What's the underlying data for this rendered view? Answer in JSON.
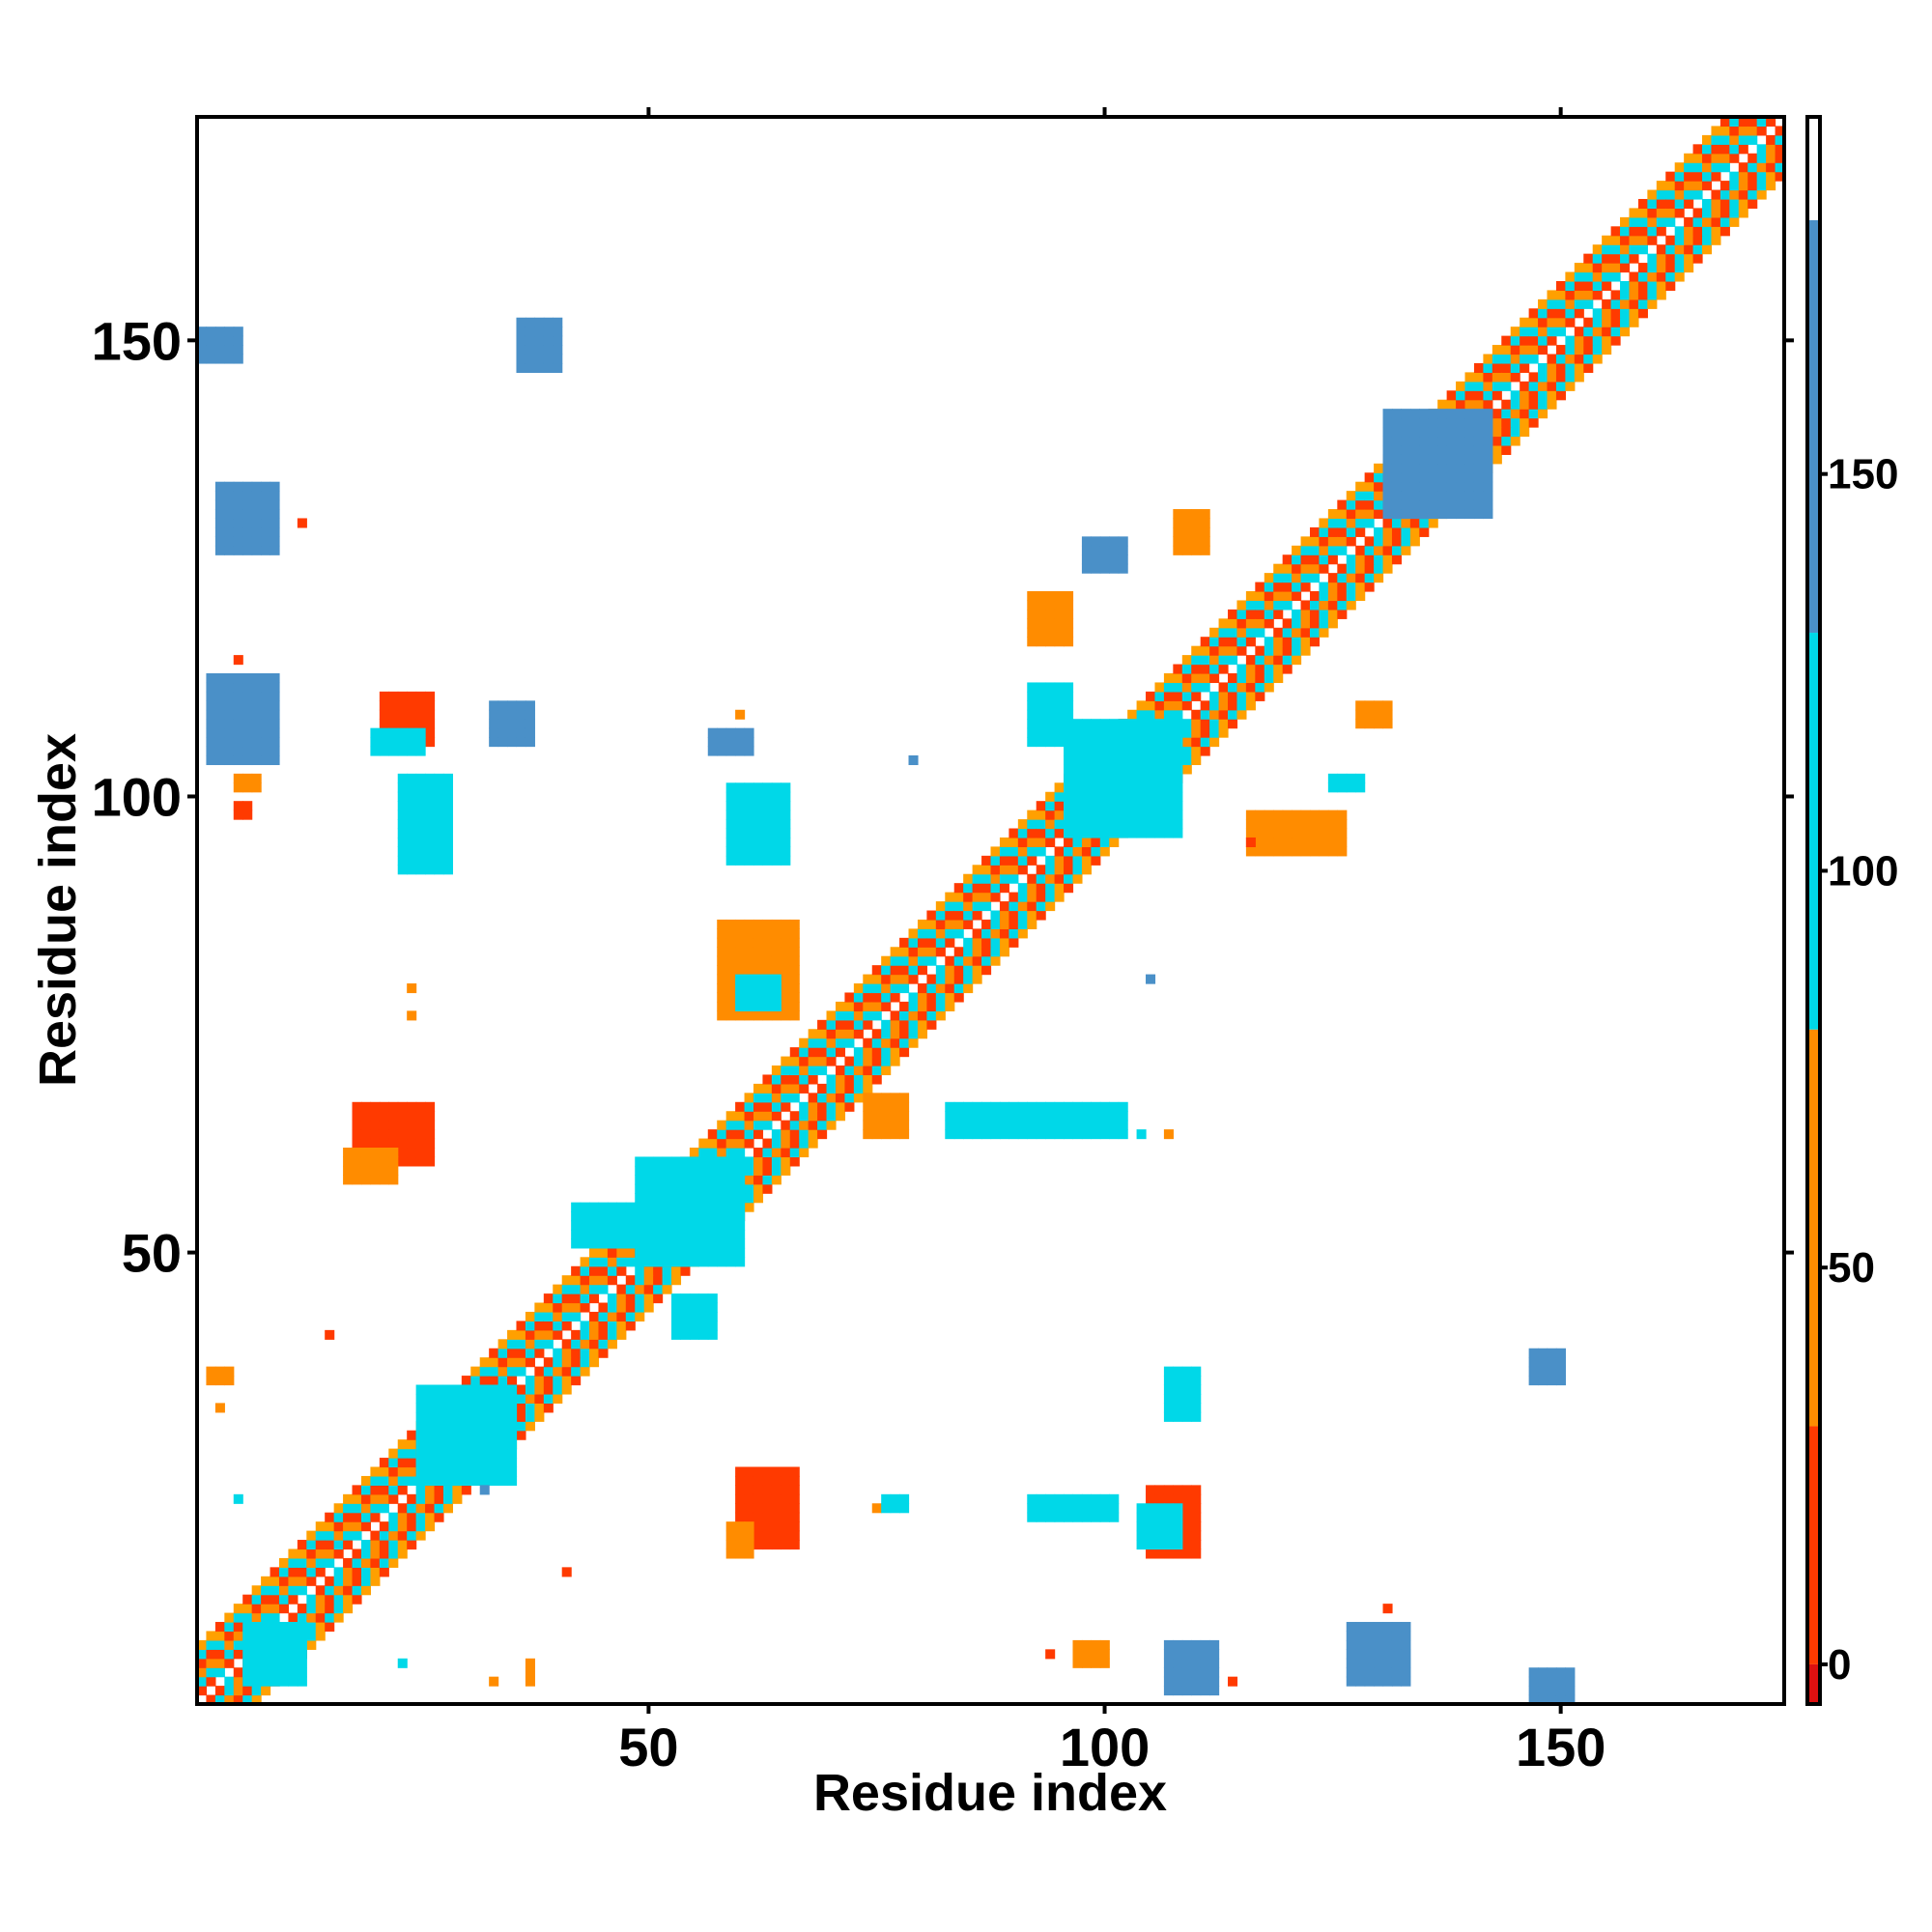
{
  "chart_data": {
    "type": "heatmap",
    "title": "",
    "xlabel": "Residue index",
    "ylabel": "Residue index",
    "xlim": [
      1,
      174
    ],
    "ylim": [
      1,
      174
    ],
    "x_ticks": [
      50,
      100,
      150
    ],
    "y_ticks": [
      50,
      100,
      150
    ],
    "x_tick_labels": [
      "50",
      "100",
      "150"
    ],
    "y_tick_labels": [
      "50",
      "100",
      "150"
    ],
    "grid": false,
    "colorbar": {
      "range": [
        -5,
        195
      ],
      "ticks": [
        0,
        50,
        100,
        150
      ],
      "tick_labels": [
        "0",
        "50",
        "100",
        "150"
      ],
      "segments": [
        {
          "from": -5,
          "to": 0,
          "color": "#dd1010"
        },
        {
          "from": 0,
          "to": 30,
          "color": "#ff3a00"
        },
        {
          "from": 30,
          "to": 80,
          "color": "#ff8c00"
        },
        {
          "from": 80,
          "to": 130,
          "color": "#00d8e8"
        },
        {
          "from": 130,
          "to": 182,
          "color": "#4a90c8"
        },
        {
          "from": 182,
          "to": 195,
          "color": "#ffffff"
        }
      ]
    },
    "colors": {
      "dark_red": "#dd1010",
      "red_orange": "#ff3a00",
      "orange": "#ff8c00",
      "amber": "#ffa000",
      "cyan": "#00d8e8",
      "sky_blue": "#33b8e0",
      "steel_blue": "#4a90c8"
    },
    "contact_blocks": [
      {
        "x": [
          1,
          174
        ],
        "y": [
          1,
          174
        ],
        "kind": "diagonal-band",
        "width": 6
      },
      {
        "x": [
          6,
          12
        ],
        "y": [
          3,
          9
        ],
        "value": 110
      },
      {
        "x": [
          25,
          35
        ],
        "y": [
          25,
          35
        ],
        "value": 100
      },
      {
        "x": [
          49,
          60
        ],
        "y": [
          49,
          60
        ],
        "value": 100
      },
      {
        "x": [
          96,
          108
        ],
        "y": [
          96,
          108
        ],
        "value": 100
      },
      {
        "x": [
          131,
          142
        ],
        "y": [
          131,
          142
        ],
        "value": 140
      },
      {
        "x": [
          60,
          66
        ],
        "y": [
          18,
          26
        ],
        "value": 10
      },
      {
        "x": [
          59,
          61
        ],
        "y": [
          17,
          20
        ],
        "value": 60
      },
      {
        "x": [
          18,
          26
        ],
        "y": [
          60,
          66
        ],
        "value": 10
      },
      {
        "x": [
          17,
          22
        ],
        "y": [
          58,
          61
        ],
        "value": 60
      },
      {
        "x": [
          21,
          26
        ],
        "y": [
          106,
          111
        ],
        "value": 10
      },
      {
        "x": [
          20,
          25
        ],
        "y": [
          105,
          107
        ],
        "value": 95
      },
      {
        "x": [
          2,
          9
        ],
        "y": [
          104,
          113
        ],
        "value": 145
      },
      {
        "x": 5,
        "y": 115,
        "value": 10
      },
      {
        "x": [
          5,
          7
        ],
        "y": [
          101,
          102
        ],
        "value": 50
      },
      {
        "x": [
          5,
          6
        ],
        "y": [
          98,
          99
        ],
        "value": 10
      },
      {
        "x": [
          3,
          9
        ],
        "y": [
          127,
          134
        ],
        "value": 145
      },
      {
        "x": 12,
        "y": 130,
        "value": 10
      },
      {
        "x": [
          1,
          5
        ],
        "y": [
          148,
          151
        ],
        "value": 140
      },
      {
        "x": [
          107,
          112
        ],
        "y": [
          2,
          7
        ],
        "value": 145
      },
      {
        "x": 114,
        "y": 3,
        "value": 10
      },
      {
        "x": [
          127,
          133
        ],
        "y": [
          3,
          9
        ],
        "value": 145
      },
      {
        "x": 131,
        "y": 11,
        "value": 10
      },
      {
        "x": [
          147,
          151
        ],
        "y": [
          1,
          4
        ],
        "value": 140
      },
      {
        "x": [
          105,
          110
        ],
        "y": [
          17,
          24
        ],
        "value": 10
      },
      {
        "x": [
          104,
          108
        ],
        "y": [
          18,
          22
        ],
        "value": 95
      },
      {
        "x": [
          92,
          101
        ],
        "y": [
          21,
          23
        ],
        "value": 100
      },
      {
        "x": 75,
        "y": 22,
        "value": 50
      },
      {
        "x": [
          76,
          78
        ],
        "y": [
          22,
          23
        ],
        "value": 100
      },
      {
        "x": [
          107,
          110
        ],
        "y": [
          32,
          37
        ],
        "value": 120
      },
      {
        "x": [
          147,
          150
        ],
        "y": [
          36,
          39
        ],
        "value": 150
      },
      {
        "x": [
          58,
          66
        ],
        "y": [
          76,
          86
        ],
        "value": 60
      },
      {
        "x": [
          60,
          64
        ],
        "y": [
          77,
          80
        ],
        "value": 100
      },
      {
        "x": [
          74,
          78
        ],
        "y": [
          63,
          67
        ],
        "value": 60
      },
      {
        "x": [
          83,
          102
        ],
        "y": [
          63,
          66
        ],
        "value": 100
      },
      {
        "x": 104,
        "y": 63,
        "value": 100
      },
      {
        "x": 107,
        "y": 63,
        "value": 40
      },
      {
        "x": [
          59,
          65
        ],
        "y": [
          93,
          101
        ],
        "value": 110
      },
      {
        "x": 60,
        "y": 109,
        "value": 40
      },
      {
        "x": [
          57,
          61
        ],
        "y": [
          105,
          107
        ],
        "value": 130
      },
      {
        "x": 79,
        "y": 104,
        "value": 150
      },
      {
        "x": [
          23,
          28
        ],
        "y": [
          92,
          102
        ],
        "value": 110
      },
      {
        "x": 24,
        "y": 76,
        "value": 60
      },
      {
        "x": 24,
        "y": 79,
        "value": 60
      },
      {
        "x": [
          33,
          37
        ],
        "y": [
          106,
          110
        ],
        "value": 150
      },
      {
        "x": [
          36,
          40
        ],
        "y": [
          147,
          152
        ],
        "value": 150
      },
      {
        "x": [
          92,
          96
        ],
        "y": [
          117,
          122
        ],
        "value": 30
      },
      {
        "x": [
          92,
          96
        ],
        "y": [
          106,
          112
        ],
        "value": 110
      },
      {
        "x": [
          98,
          102
        ],
        "y": [
          125,
          128
        ],
        "value": 140
      },
      {
        "x": [
          108,
          111
        ],
        "y": [
          127,
          131
        ],
        "value": 60
      },
      {
        "x": [
          116,
          126
        ],
        "y": [
          94,
          98
        ],
        "value": 50
      },
      {
        "x": 116,
        "y": 95,
        "value": 10
      },
      {
        "x": [
          125,
          128
        ],
        "y": [
          101,
          102
        ],
        "value": 120
      },
      {
        "x": [
          128,
          131
        ],
        "y": [
          108,
          110
        ],
        "value": 60
      },
      {
        "x": [
          42,
          50
        ],
        "y": [
          51,
          55
        ],
        "value": 110
      },
      {
        "x": [
          53,
          57
        ],
        "y": [
          41,
          45
        ],
        "value": 120
      },
      {
        "x": 32,
        "y": 24,
        "value": 150
      },
      {
        "x": [
          2,
          4
        ],
        "y": [
          36,
          37
        ],
        "value": 50
      },
      {
        "x": 3,
        "y": 33,
        "value": 50
      },
      {
        "x": 15,
        "y": 41,
        "value": 10
      },
      {
        "x": 5,
        "y": 23,
        "value": 100
      },
      {
        "x": 23,
        "y": 5,
        "value": 100
      },
      {
        "x": 33,
        "y": 3,
        "value": 40
      },
      {
        "x": 37,
        "y": [
          3,
          5
        ],
        "value": 40
      },
      {
        "x": 41,
        "y": 15,
        "value": 10
      },
      {
        "x": [
          97,
          100
        ],
        "y": [
          5,
          7
        ],
        "value": 50
      },
      {
        "x": 94,
        "y": 6,
        "value": 10
      },
      {
        "x": 105,
        "y": 80,
        "value": 150
      }
    ]
  }
}
